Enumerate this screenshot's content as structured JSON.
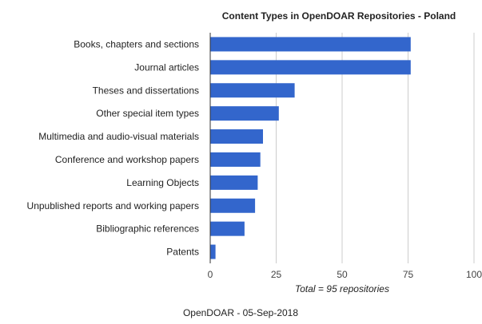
{
  "chart_data": {
    "type": "bar",
    "orientation": "horizontal",
    "title": "Content Types in OpenDOAR Repositories - Poland",
    "categories": [
      "Books, chapters and sections",
      "Journal articles",
      "Theses and dissertations",
      "Other special item types",
      "Multimedia and audio-visual materials",
      "Conference and workshop papers",
      "Learning Objects",
      "Unpublished reports and working papers",
      "Bibliographic references",
      "Patents"
    ],
    "values": [
      76,
      76,
      32,
      26,
      20,
      19,
      18,
      17,
      13,
      2
    ],
    "x_ticks": [
      0,
      25,
      50,
      75,
      100
    ],
    "xlim": [
      0,
      100
    ],
    "grid": true,
    "annotation": "Total = 95 repositories",
    "bar_color": "#3366cc",
    "grid_color": "#cccccc",
    "text_color": "#222222"
  },
  "footer": {
    "source": "OpenDOAR - 05-Sep-2018"
  }
}
